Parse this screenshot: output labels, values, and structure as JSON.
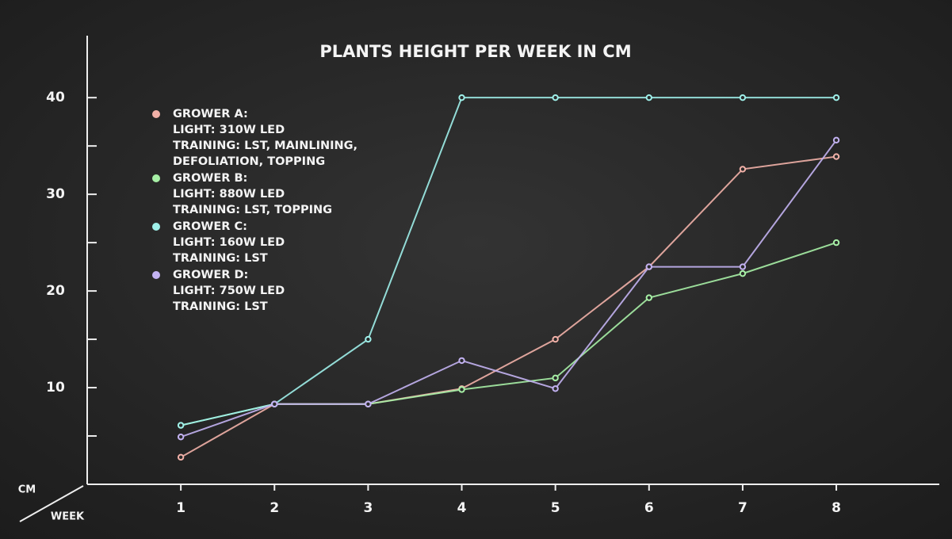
{
  "chart_data": {
    "type": "line",
    "title": "PLANTS HEIGHT PER WEEK IN CM",
    "x_label": "WEEK",
    "y_label": "CM",
    "x": [
      1,
      2,
      3,
      4,
      5,
      6,
      7,
      8
    ],
    "xlim": [
      0,
      9.1
    ],
    "xticks": [
      1,
      2,
      3,
      4,
      5,
      6,
      7,
      8
    ],
    "ylim": [
      0,
      46
    ],
    "yticks": [
      10,
      20,
      30,
      40
    ],
    "minor_yticks": [
      5,
      15,
      25,
      35
    ],
    "series": [
      {
        "name": "GROWER A:",
        "details": [
          "LIGHT: 310W LED",
          "TRAINING: LST, MAINLINING,",
          "DEFOLIATION, TOPPING"
        ],
        "color": "#f2b1a8",
        "values": [
          2.8,
          8.3,
          8.3,
          9.9,
          15,
          22.5,
          32.6,
          33.9
        ]
      },
      {
        "name": "GROWER B:",
        "details": [
          "LIGHT: 880W  LED",
          "TRAINING: LST, TOPPING"
        ],
        "color": "#a7f0a6",
        "values": [
          6.1,
          8.3,
          8.3,
          9.8,
          11,
          19.3,
          21.8,
          25
        ]
      },
      {
        "name": "GROWER C:",
        "details": [
          "LIGHT: 160W LED",
          "TRAINING: LST"
        ],
        "color": "#9ff0ea",
        "values": [
          6.1,
          8.3,
          15,
          40,
          40,
          40,
          40,
          40
        ]
      },
      {
        "name": "GROWER D:",
        "details": [
          "LIGHT: 750W LED",
          "TRAINING: LST"
        ],
        "color": "#c3b2f2",
        "values": [
          4.9,
          8.3,
          8.3,
          12.8,
          9.9,
          22.5,
          22.5,
          35.6
        ]
      }
    ]
  }
}
